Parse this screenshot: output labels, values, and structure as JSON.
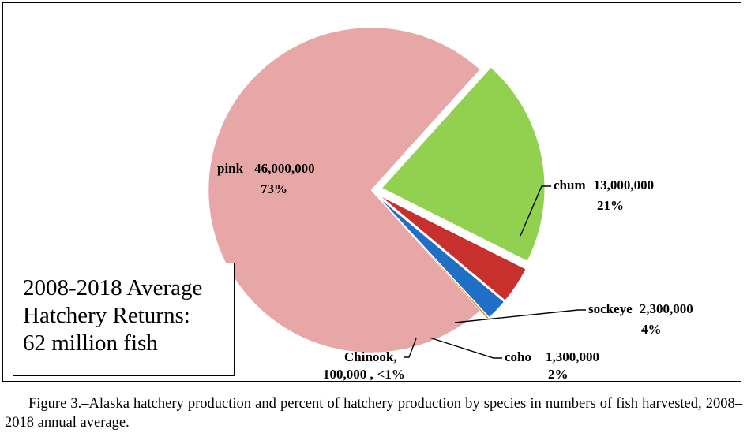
{
  "chart_data": {
    "type": "pie",
    "title_lines": [
      "2008-2018 Average",
      "Hatchery Returns:",
      "62 million fish"
    ],
    "slices": [
      {
        "key": "pink",
        "name": "pink",
        "count": "46,000,000",
        "value": 46000000,
        "percent": "73%",
        "color": "#E8A7A7",
        "exploded": false
      },
      {
        "key": "chum",
        "name": "chum",
        "count": "13,000,000",
        "value": 13000000,
        "percent": "21%",
        "color": "#92D050",
        "exploded": true
      },
      {
        "key": "sockeye",
        "name": "sockeye",
        "count": "2,300,000",
        "value": 2300000,
        "percent": "4%",
        "color": "#C8302E",
        "exploded": true
      },
      {
        "key": "coho",
        "name": "coho",
        "count": "1,300,000",
        "value": 1300000,
        "percent": "2%",
        "color": "#1F6FC5",
        "exploded": true
      },
      {
        "key": "chinook",
        "name": "Chinook,",
        "count": "100,000 ,",
        "value": 100000,
        "percent": "<1%",
        "color": "#E8821E",
        "exploded": true
      }
    ]
  },
  "caption": "Figure 3.–Alaska hatchery production and percent of hatchery production by species in numbers of fish harvested, 2008–2018 annual average."
}
